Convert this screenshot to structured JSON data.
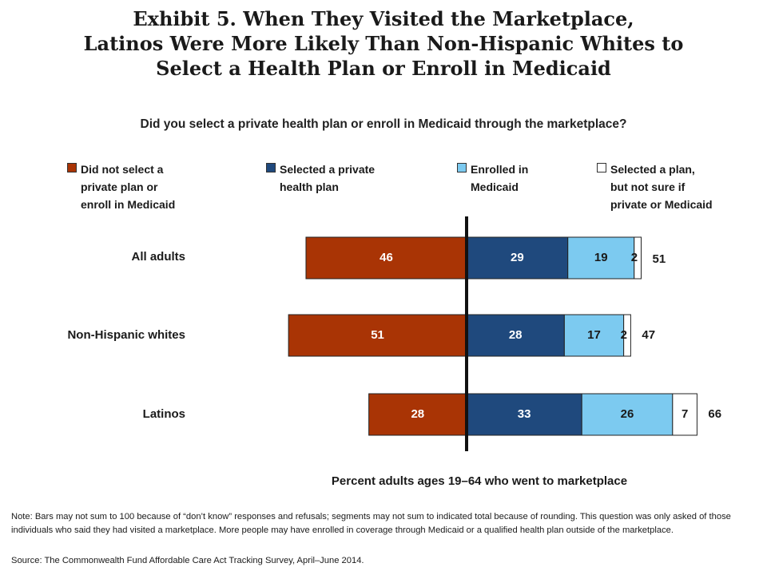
{
  "title_lines": [
    "Exhibit 5. When They Visited the Marketplace,",
    "Latinos Were More Likely Than Non-Hispanic Whites to",
    "Select a Health Plan or Enroll in Medicaid"
  ],
  "subtitle": "Did you select a private health plan or enroll in Medicaid through the marketplace?",
  "legend": [
    {
      "label": "Did not select a\nprivate plan or\nenroll in Medicaid",
      "color": "#a93405"
    },
    {
      "label": "Selected a private\nhealth plan",
      "color": "#1f497d"
    },
    {
      "label": "Enrolled in\nMedicaid",
      "color": "#7ccaf0"
    },
    {
      "label": "Selected a plan,\nbut not sure if\nprivate or Medicaid",
      "color": "#ffffff"
    }
  ],
  "chart_data": {
    "type": "bar",
    "orientation": "horizontal-diverging",
    "categories": [
      "All adults",
      "Non-Hispanic whites",
      "Latinos"
    ],
    "series": [
      {
        "name": "Did not select a private plan or enroll in Medicaid",
        "values": [
          46,
          51,
          28
        ],
        "color": "#a93405",
        "side": "left"
      },
      {
        "name": "Selected a private health plan",
        "values": [
          29,
          28,
          33
        ],
        "color": "#1f497d",
        "side": "right"
      },
      {
        "name": "Enrolled in Medicaid",
        "values": [
          19,
          17,
          26
        ],
        "color": "#7ccaf0",
        "side": "right"
      },
      {
        "name": "Selected a plan, but not sure if private or Medicaid",
        "values": [
          2,
          2,
          7
        ],
        "color": "#ffffff",
        "side": "right"
      }
    ],
    "totals": [
      51,
      47,
      66
    ],
    "xlabel": "Percent adults ages 19–64 who went to marketplace",
    "ylabel": ""
  },
  "note": "Note: Bars may not sum to 100 because of “don’t know” responses and refusals; segments may not sum to indicated total because of rounding. This question was only asked of those individuals who said they had visited a marketplace. More people may have enrolled in coverage through Medicaid or a qualified health plan outside of the marketplace.",
  "source": "Source: The Commonwealth Fund Affordable Care Act Tracking Survey, April–June 2014."
}
